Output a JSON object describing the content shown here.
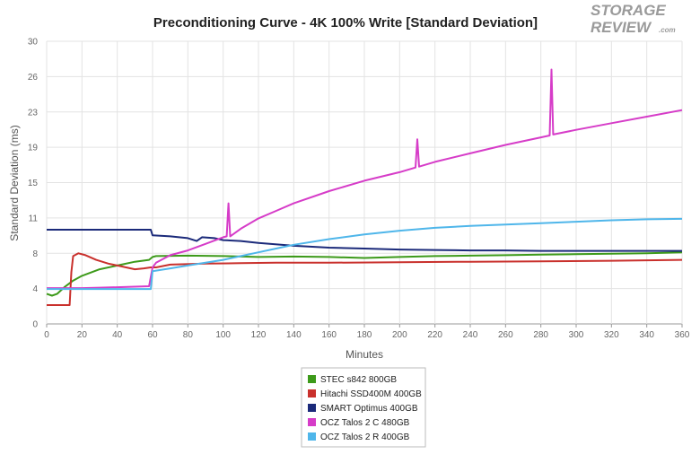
{
  "chart_data": {
    "type": "line",
    "title": "Preconditioning Curve - 4K 100% Write [Standard Deviation]",
    "xlabel": "Minutes",
    "ylabel": "Standard Deviation (ms)",
    "xlim": [
      0,
      360
    ],
    "ylim": [
      0,
      30
    ],
    "x_ticks": [
      "0",
      "20",
      "40",
      "60",
      "80",
      "100",
      "120",
      "140",
      "160",
      "180",
      "200",
      "220",
      "240",
      "260",
      "280",
      "300",
      "320",
      "340",
      "360"
    ],
    "y_ticks": [
      {
        "value": 0,
        "label": "0"
      },
      {
        "value": 3.75,
        "label": "4"
      },
      {
        "value": 7.5,
        "label": "8"
      },
      {
        "value": 11.25,
        "label": "11"
      },
      {
        "value": 15,
        "label": "15"
      },
      {
        "value": 18.75,
        "label": "19"
      },
      {
        "value": 22.5,
        "label": "23"
      },
      {
        "value": 26.25,
        "label": "26"
      },
      {
        "value": 30,
        "label": "30"
      }
    ],
    "grid": true,
    "legend": "bottom-center",
    "series": [
      {
        "name": "STEC s842 800GB",
        "color": "#3d9a1a",
        "points": [
          [
            0,
            3.2
          ],
          [
            3,
            3
          ],
          [
            6,
            3.2
          ],
          [
            10,
            3.9
          ],
          [
            15,
            4.6
          ],
          [
            20,
            5.1
          ],
          [
            30,
            5.8
          ],
          [
            40,
            6.2
          ],
          [
            50,
            6.6
          ],
          [
            58,
            6.8
          ],
          [
            60,
            7.1
          ],
          [
            62,
            7.2
          ],
          [
            80,
            7.25
          ],
          [
            100,
            7.2
          ],
          [
            120,
            7.1
          ],
          [
            140,
            7.15
          ],
          [
            160,
            7.1
          ],
          [
            180,
            7.0
          ],
          [
            200,
            7.1
          ],
          [
            220,
            7.2
          ],
          [
            240,
            7.25
          ],
          [
            260,
            7.3
          ],
          [
            280,
            7.35
          ],
          [
            300,
            7.4
          ],
          [
            320,
            7.45
          ],
          [
            340,
            7.5
          ],
          [
            360,
            7.6
          ]
        ]
      },
      {
        "name": "Hitachi SSD400M 400GB",
        "color": "#c9302c",
        "points": [
          [
            0,
            2.0
          ],
          [
            5,
            2.0
          ],
          [
            13,
            2.0
          ],
          [
            14,
            5.5
          ],
          [
            15,
            7.2
          ],
          [
            18,
            7.5
          ],
          [
            22,
            7.3
          ],
          [
            28,
            6.8
          ],
          [
            35,
            6.4
          ],
          [
            40,
            6.2
          ],
          [
            45,
            6.0
          ],
          [
            50,
            5.8
          ],
          [
            55,
            5.9
          ],
          [
            59,
            6.0
          ],
          [
            62,
            6.0
          ],
          [
            70,
            6.3
          ],
          [
            90,
            6.4
          ],
          [
            110,
            6.45
          ],
          [
            130,
            6.5
          ],
          [
            160,
            6.5
          ],
          [
            200,
            6.55
          ],
          [
            240,
            6.6
          ],
          [
            280,
            6.65
          ],
          [
            320,
            6.7
          ],
          [
            360,
            6.8
          ]
        ]
      },
      {
        "name": "SMART Optimus 400GB",
        "color": "#1b2a7a",
        "points": [
          [
            0,
            10
          ],
          [
            20,
            10
          ],
          [
            40,
            10
          ],
          [
            59,
            10
          ],
          [
            60,
            9.4
          ],
          [
            70,
            9.3
          ],
          [
            80,
            9.1
          ],
          [
            85,
            8.8
          ],
          [
            88,
            9.2
          ],
          [
            95,
            9.1
          ],
          [
            100,
            8.9
          ],
          [
            110,
            8.8
          ],
          [
            120,
            8.6
          ],
          [
            140,
            8.3
          ],
          [
            160,
            8.1
          ],
          [
            180,
            8.0
          ],
          [
            200,
            7.9
          ],
          [
            220,
            7.85
          ],
          [
            240,
            7.8
          ],
          [
            260,
            7.8
          ],
          [
            280,
            7.75
          ],
          [
            300,
            7.75
          ],
          [
            320,
            7.75
          ],
          [
            340,
            7.75
          ],
          [
            360,
            7.75
          ]
        ]
      },
      {
        "name": "OCZ Talos 2 C 480GB",
        "color": "#d63cc8",
        "points": [
          [
            0,
            3.8
          ],
          [
            20,
            3.8
          ],
          [
            30,
            3.85
          ],
          [
            40,
            3.9
          ],
          [
            50,
            3.95
          ],
          [
            58,
            4.0
          ],
          [
            60,
            6.0
          ],
          [
            62,
            6.5
          ],
          [
            70,
            7.3
          ],
          [
            80,
            7.8
          ],
          [
            90,
            8.5
          ],
          [
            100,
            9.2
          ],
          [
            102,
            9.3
          ],
          [
            103,
            12.8
          ],
          [
            104,
            9.3
          ],
          [
            110,
            10.1
          ],
          [
            120,
            11.2
          ],
          [
            130,
            12.0
          ],
          [
            140,
            12.8
          ],
          [
            160,
            14.1
          ],
          [
            180,
            15.2
          ],
          [
            200,
            16.1
          ],
          [
            209,
            16.6
          ],
          [
            210,
            19.6
          ],
          [
            211,
            16.7
          ],
          [
            220,
            17.2
          ],
          [
            240,
            18.1
          ],
          [
            260,
            19.0
          ],
          [
            280,
            19.8
          ],
          [
            285,
            20.0
          ],
          [
            286,
            27.0
          ],
          [
            287,
            20.1
          ],
          [
            300,
            20.6
          ],
          [
            320,
            21.3
          ],
          [
            340,
            22.0
          ],
          [
            360,
            22.7
          ]
        ]
      },
      {
        "name": "OCZ Talos 2 R 400GB",
        "color": "#4fb6ea",
        "points": [
          [
            0,
            3.7
          ],
          [
            20,
            3.7
          ],
          [
            40,
            3.7
          ],
          [
            59,
            3.7
          ],
          [
            60,
            5.6
          ],
          [
            70,
            5.9
          ],
          [
            80,
            6.2
          ],
          [
            90,
            6.5
          ],
          [
            100,
            6.8
          ],
          [
            110,
            7.2
          ],
          [
            120,
            7.6
          ],
          [
            130,
            8.0
          ],
          [
            140,
            8.4
          ],
          [
            160,
            9.0
          ],
          [
            180,
            9.5
          ],
          [
            200,
            9.9
          ],
          [
            220,
            10.2
          ],
          [
            240,
            10.4
          ],
          [
            260,
            10.55
          ],
          [
            280,
            10.7
          ],
          [
            300,
            10.85
          ],
          [
            320,
            11.0
          ],
          [
            340,
            11.1
          ],
          [
            360,
            11.15
          ]
        ]
      }
    ]
  },
  "logo": {
    "line1": "STORAGE",
    "line2": "REVIEW",
    "suffix": ".com"
  }
}
